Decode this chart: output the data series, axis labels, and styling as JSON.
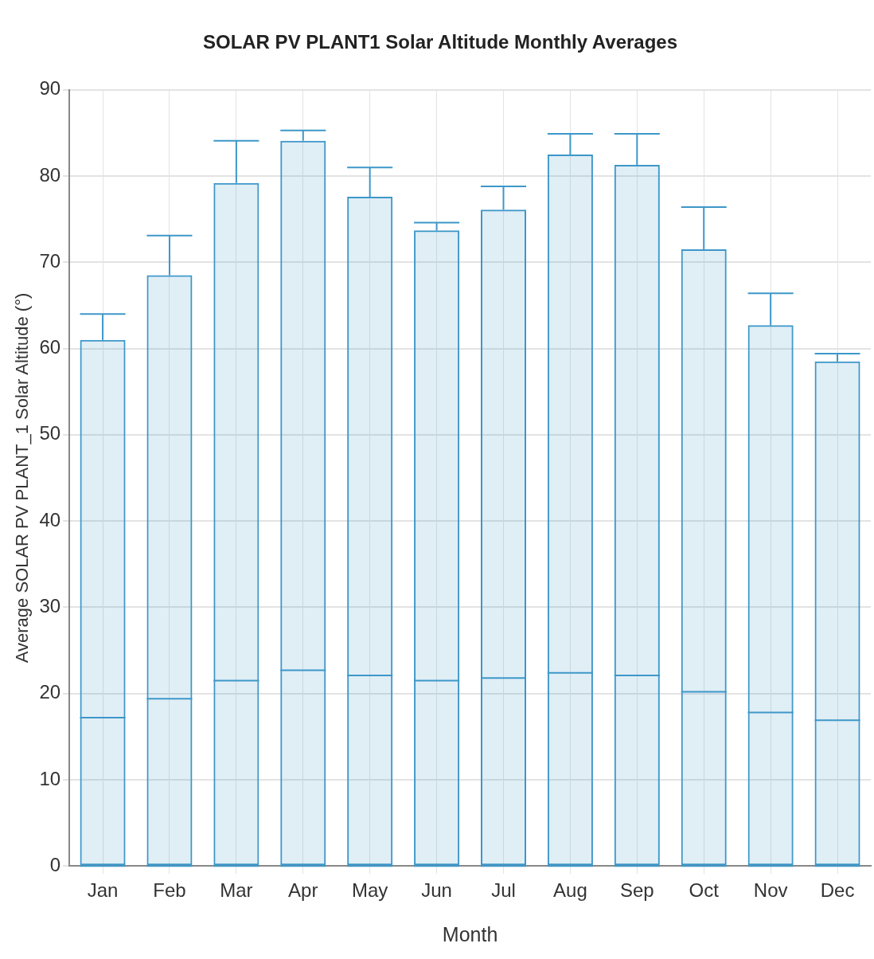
{
  "chart_data": {
    "type": "box",
    "title": "SOLAR PV PLANT1 Solar Altitude Monthly Averages",
    "xlabel": "Month",
    "ylabel": "Average SOLAR PV PLANT_1 Solar Altitude (°)",
    "categories": [
      "Jan",
      "Feb",
      "Mar",
      "Apr",
      "May",
      "Jun",
      "Jul",
      "Aug",
      "Sep",
      "Oct",
      "Nov",
      "Dec"
    ],
    "boxes": [
      {
        "low": 0,
        "q1": 0,
        "median": 17.2,
        "q3": 61.0,
        "high": 64.0
      },
      {
        "low": 0,
        "q1": 0,
        "median": 19.4,
        "q3": 68.5,
        "high": 73.1
      },
      {
        "low": 0,
        "q1": 0,
        "median": 21.5,
        "q3": 79.2,
        "high": 84.1
      },
      {
        "low": 0,
        "q1": 0,
        "median": 22.7,
        "q3": 84.1,
        "high": 85.3
      },
      {
        "low": 0,
        "q1": 0,
        "median": 22.1,
        "q3": 77.6,
        "high": 81.0
      },
      {
        "low": 0,
        "q1": 0,
        "median": 21.5,
        "q3": 73.7,
        "high": 74.6
      },
      {
        "low": 0,
        "q1": 0,
        "median": 21.8,
        "q3": 76.1,
        "high": 78.8
      },
      {
        "low": 0,
        "q1": 0,
        "median": 22.4,
        "q3": 82.5,
        "high": 84.9
      },
      {
        "low": 0,
        "q1": 0,
        "median": 22.1,
        "q3": 81.3,
        "high": 84.9
      },
      {
        "low": 0,
        "q1": 0,
        "median": 20.2,
        "q3": 71.5,
        "high": 76.4
      },
      {
        "low": 0,
        "q1": 0,
        "median": 17.8,
        "q3": 62.7,
        "high": 66.4
      },
      {
        "low": 0,
        "q1": 0,
        "median": 16.9,
        "q3": 58.5,
        "high": 59.4
      }
    ],
    "color": "#3d97c9",
    "ylim": [
      0,
      90
    ],
    "yticks": [
      0,
      10,
      20,
      30,
      40,
      50,
      60,
      70,
      80,
      90
    ],
    "grid": true
  }
}
